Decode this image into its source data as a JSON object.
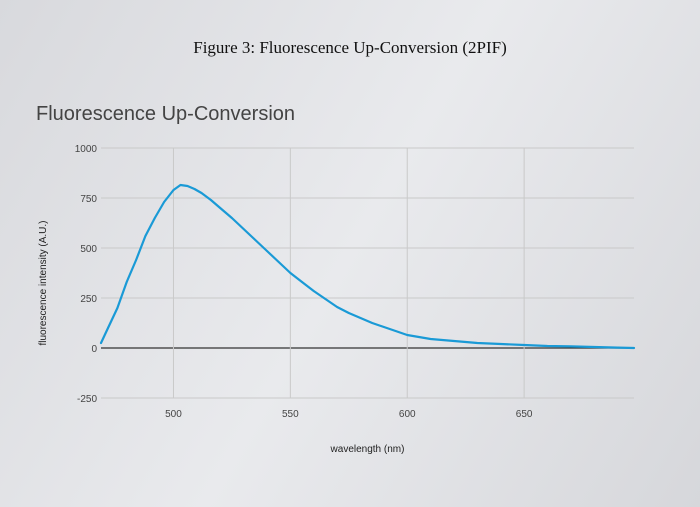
{
  "figure_caption": "Figure 3: Fluorescence Up-Conversion (2PIF)",
  "chart_data": {
    "type": "line",
    "title": "Fluorescence Up-Conversion",
    "xlabel": "wavelength (nm)",
    "ylabel": "fluorescence intensity (A.U.)",
    "xlim": [
      469,
      697
    ],
    "ylim": [
      -250,
      1000
    ],
    "x_ticks": [
      "500",
      "550",
      "600",
      "650"
    ],
    "y_ticks": [
      "1000",
      "750",
      "500",
      "250",
      "0",
      "-250"
    ],
    "grid": true,
    "legend": "none",
    "colors": {
      "line": "#1a9ad6",
      "grid": "#c9c9c9",
      "zero_line": "#333333"
    },
    "series": [
      {
        "x": [
          469,
          472,
          476,
          480,
          484,
          488,
          492,
          496,
          500,
          503,
          506,
          509,
          512,
          516,
          520,
          525,
          530,
          535,
          540,
          545,
          550,
          555,
          560,
          565,
          570,
          575,
          580,
          585,
          590,
          595,
          600,
          605,
          610,
          620,
          630,
          640,
          650,
          660,
          670,
          680,
          690,
          697
        ],
        "y": [
          25,
          100,
          200,
          330,
          440,
          560,
          650,
          730,
          790,
          815,
          810,
          795,
          775,
          740,
          700,
          650,
          595,
          540,
          485,
          430,
          375,
          330,
          285,
          245,
          205,
          175,
          150,
          125,
          105,
          85,
          65,
          55,
          45,
          35,
          25,
          20,
          15,
          10,
          8,
          5,
          2,
          0
        ]
      }
    ]
  }
}
